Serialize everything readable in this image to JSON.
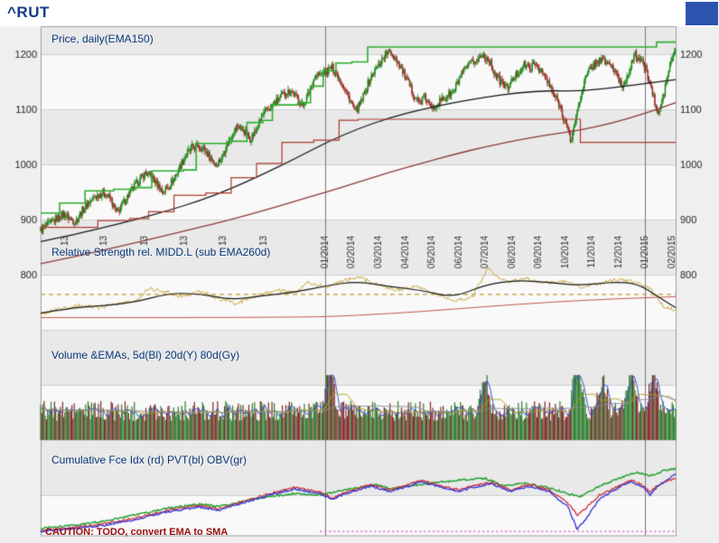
{
  "header": {
    "symbol": "^RUT"
  },
  "panels": {
    "price": {
      "label": "Price, daily(EMA150)"
    },
    "rs": {
      "label": "Relative Strength rel. MIDD.L (sub EMA260d)"
    },
    "volume": {
      "label": "Volume &EMAs, 5d(Bl) 20d(Y) 80d(Gy)"
    },
    "cumulative": {
      "label": "Cumulative Fce Idx (rd) PVT(bl) OBV(gr)"
    },
    "caution": "CAUTION: TODO, convert EMA to SMA"
  },
  "colors": {
    "page": "#efefef",
    "top_strip": "#ffffff",
    "stripe_a": "#e9e9e9",
    "stripe_b": "#f9f9f9",
    "grid": "#cfcfcf",
    "dark_grid": "#787878",
    "border": "#a0a0a0",
    "axis_text": "#222222",
    "date_text": "#333333",
    "panel_label": "#0a3a7e",
    "title": "#123c8c",
    "caution": "#9b1010",
    "corner_box": "#2d54ae",
    "candle_up": "#1a8c1a",
    "candle_down": "#9e2f2f",
    "price_green_step": "#2fae2f",
    "price_red_step": "#ab3b2e",
    "price_black": "#1a1a1a",
    "price_brown": "#8f3a3a",
    "rs_gold": "#c9a63b",
    "rs_dash": "#bf9f2f",
    "rs_red": "#c4574a",
    "vol_up": "#2f7d2f",
    "vol_down": "#7e2a2a",
    "vol_ma5": "#3a50d9",
    "vol_ma20": "#b3a21c",
    "vol_ma80": "#8f8f8f",
    "cum_red": "#d03030",
    "cum_blue": "#3232d8",
    "cum_green": "#1f9e2f",
    "cum_magenta": "#df5fd0"
  },
  "chart_data": {
    "type": "candlestick",
    "title": "^RUT daily price with EMA150, relative strength, volume and cumulative indicator panels",
    "x_axis": {
      "labels": [
        {
          "text": "13",
          "x": 0.038
        },
        {
          "text": "13",
          "x": 0.1
        },
        {
          "text": "13",
          "x": 0.163
        },
        {
          "text": "13",
          "x": 0.226
        },
        {
          "text": "13",
          "x": 0.288
        },
        {
          "text": "13",
          "x": 0.351
        },
        {
          "text": "01/2014",
          "x": 0.448
        },
        {
          "text": "02/2014",
          "x": 0.49
        },
        {
          "text": "03/2014",
          "x": 0.532
        },
        {
          "text": "04/2014",
          "x": 0.574
        },
        {
          "text": "05/2014",
          "x": 0.616
        },
        {
          "text": "06/2014",
          "x": 0.658
        },
        {
          "text": "07/2014",
          "x": 0.7
        },
        {
          "text": "08/2014",
          "x": 0.742
        },
        {
          "text": "09/2014",
          "x": 0.784
        },
        {
          "text": "10/2014",
          "x": 0.826
        },
        {
          "text": "11/2014",
          "x": 0.868
        },
        {
          "text": "12/2014",
          "x": 0.91
        },
        {
          "text": "01/2015",
          "x": 0.952
        },
        {
          "text": "02/2015",
          "x": 0.994
        }
      ],
      "major_gridlines": [
        0.448,
        0.952
      ]
    },
    "y_axis": {
      "ticks": [
        1200,
        1100,
        1000,
        900,
        800
      ],
      "units_per_grid": 100
    },
    "price_panel": {
      "weekly_closes": [
        880,
        888,
        896,
        904,
        910,
        902,
        896,
        914,
        928,
        938,
        946,
        950,
        936,
        912,
        926,
        944,
        958,
        972,
        984,
        978,
        964,
        950,
        962,
        976,
        998,
        1018,
        1030,
        1034,
        1028,
        1014,
        1000,
        1010,
        1038,
        1058,
        1070,
        1060,
        1046,
        1062,
        1088,
        1100,
        1110,
        1120,
        1130,
        1134,
        1120,
        1106,
        1130,
        1158,
        1164,
        1168,
        1176,
        1162,
        1140,
        1120,
        1096,
        1112,
        1142,
        1164,
        1180,
        1198,
        1205,
        1192,
        1172,
        1150,
        1128,
        1112,
        1122,
        1102,
        1110,
        1118,
        1126,
        1134,
        1158,
        1174,
        1184,
        1190,
        1200,
        1188,
        1164,
        1150,
        1140,
        1152,
        1168,
        1180,
        1176,
        1182,
        1168,
        1150,
        1128,
        1110,
        1078,
        1042,
        1090,
        1140,
        1168,
        1182,
        1190,
        1186,
        1180,
        1158,
        1140,
        1172,
        1198,
        1190,
        1170,
        1130,
        1088,
        1130,
        1180,
        1210
      ],
      "lines": {
        "donchian_high_step": {
          "points": [
            [
              0,
              912
            ],
            [
              0.03,
              930
            ],
            [
              0.07,
              952
            ],
            [
              0.115,
              955
            ],
            [
              0.15,
              958
            ],
            [
              0.175,
              988
            ],
            [
              0.225,
              990
            ],
            [
              0.245,
              1038
            ],
            [
              0.3,
              1042
            ],
            [
              0.325,
              1076
            ],
            [
              0.35,
              1080
            ],
            [
              0.365,
              1108
            ],
            [
              0.405,
              1112
            ],
            [
              0.425,
              1142
            ],
            [
              0.445,
              1170
            ],
            [
              0.465,
              1184
            ],
            [
              0.49,
              1186
            ],
            [
              0.515,
              1213
            ],
            [
              0.955,
              1213
            ],
            [
              0.97,
              1222
            ],
            [
              1,
              1222
            ]
          ]
        },
        "donchian_low_step": {
          "points": [
            [
              0,
              886
            ],
            [
              0.06,
              886
            ],
            [
              0.09,
              898
            ],
            [
              0.14,
              902
            ],
            [
              0.17,
              914
            ],
            [
              0.21,
              944
            ],
            [
              0.26,
              948
            ],
            [
              0.3,
              976
            ],
            [
              0.34,
              1002
            ],
            [
              0.38,
              1040
            ],
            [
              0.43,
              1044
            ],
            [
              0.47,
              1080
            ],
            [
              0.5,
              1082
            ],
            [
              0.845,
              1082
            ],
            [
              0.85,
              1040
            ],
            [
              1,
              1040
            ]
          ]
        },
        "ema150": {
          "points": [
            [
              0,
              860
            ],
            [
              0.05,
              872
            ],
            [
              0.1,
              886
            ],
            [
              0.15,
              900
            ],
            [
              0.2,
              916
            ],
            [
              0.25,
              934
            ],
            [
              0.3,
              956
            ],
            [
              0.35,
              982
            ],
            [
              0.4,
              1010
            ],
            [
              0.45,
              1040
            ],
            [
              0.5,
              1065
            ],
            [
              0.55,
              1085
            ],
            [
              0.6,
              1100
            ],
            [
              0.65,
              1112
            ],
            [
              0.7,
              1122
            ],
            [
              0.75,
              1130
            ],
            [
              0.8,
              1134
            ],
            [
              0.84,
              1133
            ],
            [
              0.88,
              1136
            ],
            [
              0.92,
              1142
            ],
            [
              0.96,
              1148
            ],
            [
              1,
              1154
            ]
          ]
        },
        "ema_long": {
          "points": [
            [
              0,
              820
            ],
            [
              0.05,
              832
            ],
            [
              0.1,
              845
            ],
            [
              0.15,
              858
            ],
            [
              0.2,
              872
            ],
            [
              0.25,
              886
            ],
            [
              0.3,
              900
            ],
            [
              0.35,
              916
            ],
            [
              0.4,
              933
            ],
            [
              0.45,
              950
            ],
            [
              0.5,
              968
            ],
            [
              0.55,
              986
            ],
            [
              0.6,
              1002
            ],
            [
              0.65,
              1018
            ],
            [
              0.7,
              1032
            ],
            [
              0.75,
              1044
            ],
            [
              0.8,
              1054
            ],
            [
              0.85,
              1062
            ],
            [
              0.9,
              1075
            ],
            [
              0.95,
              1092
            ],
            [
              1,
              1112
            ]
          ]
        }
      }
    },
    "rs_panel": {
      "gold": [
        [
          0,
          728
        ],
        [
          0.03,
          738
        ],
        [
          0.06,
          744
        ],
        [
          0.09,
          740
        ],
        [
          0.12,
          748
        ],
        [
          0.15,
          752
        ],
        [
          0.17,
          776
        ],
        [
          0.2,
          768
        ],
        [
          0.22,
          760
        ],
        [
          0.25,
          770
        ],
        [
          0.28,
          756
        ],
        [
          0.31,
          748
        ],
        [
          0.34,
          762
        ],
        [
          0.37,
          772
        ],
        [
          0.4,
          766
        ],
        [
          0.42,
          786
        ],
        [
          0.45,
          778
        ],
        [
          0.48,
          790
        ],
        [
          0.5,
          796
        ],
        [
          0.53,
          782
        ],
        [
          0.56,
          772
        ],
        [
          0.59,
          778
        ],
        [
          0.62,
          766
        ],
        [
          0.65,
          752
        ],
        [
          0.68,
          760
        ],
        [
          0.705,
          812
        ],
        [
          0.72,
          796
        ],
        [
          0.74,
          786
        ],
        [
          0.76,
          794
        ],
        [
          0.79,
          784
        ],
        [
          0.82,
          788
        ],
        [
          0.85,
          778
        ],
        [
          0.88,
          784
        ],
        [
          0.91,
          792
        ],
        [
          0.94,
          786
        ],
        [
          0.96,
          776
        ],
        [
          0.98,
          744
        ],
        [
          1,
          734
        ]
      ],
      "smooth_black": [
        [
          0,
          730
        ],
        [
          0.05,
          740
        ],
        [
          0.1,
          744
        ],
        [
          0.15,
          750
        ],
        [
          0.2,
          766
        ],
        [
          0.25,
          766
        ],
        [
          0.3,
          754
        ],
        [
          0.35,
          762
        ],
        [
          0.4,
          768
        ],
        [
          0.45,
          780
        ],
        [
          0.5,
          788
        ],
        [
          0.55,
          778
        ],
        [
          0.6,
          772
        ],
        [
          0.65,
          758
        ],
        [
          0.7,
          782
        ],
        [
          0.75,
          790
        ],
        [
          0.8,
          786
        ],
        [
          0.85,
          780
        ],
        [
          0.9,
          787
        ],
        [
          0.94,
          784
        ],
        [
          0.97,
          762
        ],
        [
          1,
          740
        ]
      ],
      "flat_red": [
        [
          0,
          722
        ],
        [
          0.4,
          722
        ],
        [
          0.5,
          726
        ],
        [
          0.6,
          733
        ],
        [
          0.7,
          742
        ],
        [
          0.8,
          750
        ],
        [
          0.9,
          756
        ],
        [
          1,
          760
        ]
      ],
      "dashed_level": 764
    },
    "volume_panel": {
      "base": 0.55,
      "noise": 0.25,
      "spikes": [
        [
          0.455,
          1.25
        ],
        [
          0.7,
          0.9
        ],
        [
          0.845,
          1.35
        ],
        [
          0.885,
          0.8
        ],
        [
          0.93,
          1.1
        ],
        [
          0.965,
          1.0
        ]
      ],
      "sma_periods": [
        5,
        20,
        80
      ]
    },
    "cumulative_panel": {
      "obv_green": [
        [
          0,
          0.06
        ],
        [
          0.05,
          0.1
        ],
        [
          0.1,
          0.16
        ],
        [
          0.15,
          0.24
        ],
        [
          0.2,
          0.33
        ],
        [
          0.25,
          0.38
        ],
        [
          0.28,
          0.35
        ],
        [
          0.32,
          0.42
        ],
        [
          0.36,
          0.48
        ],
        [
          0.4,
          0.52
        ],
        [
          0.44,
          0.5
        ],
        [
          0.47,
          0.55
        ],
        [
          0.5,
          0.6
        ],
        [
          0.53,
          0.64
        ],
        [
          0.55,
          0.58
        ],
        [
          0.58,
          0.62
        ],
        [
          0.62,
          0.66
        ],
        [
          0.66,
          0.7
        ],
        [
          0.7,
          0.72
        ],
        [
          0.73,
          0.62
        ],
        [
          0.76,
          0.66
        ],
        [
          0.8,
          0.6
        ],
        [
          0.83,
          0.52
        ],
        [
          0.85,
          0.48
        ],
        [
          0.88,
          0.62
        ],
        [
          0.91,
          0.72
        ],
        [
          0.94,
          0.8
        ],
        [
          0.96,
          0.75
        ],
        [
          0.98,
          0.82
        ],
        [
          1,
          0.85
        ]
      ],
      "pvt_blue": [
        [
          0,
          0.02
        ],
        [
          0.05,
          0.06
        ],
        [
          0.1,
          0.1
        ],
        [
          0.15,
          0.18
        ],
        [
          0.2,
          0.28
        ],
        [
          0.25,
          0.34
        ],
        [
          0.28,
          0.3
        ],
        [
          0.32,
          0.4
        ],
        [
          0.36,
          0.5
        ],
        [
          0.4,
          0.58
        ],
        [
          0.44,
          0.52
        ],
        [
          0.46,
          0.44
        ],
        [
          0.48,
          0.52
        ],
        [
          0.52,
          0.62
        ],
        [
          0.55,
          0.55
        ],
        [
          0.58,
          0.62
        ],
        [
          0.6,
          0.68
        ],
        [
          0.63,
          0.6
        ],
        [
          0.66,
          0.55
        ],
        [
          0.68,
          0.6
        ],
        [
          0.71,
          0.65
        ],
        [
          0.74,
          0.55
        ],
        [
          0.77,
          0.62
        ],
        [
          0.8,
          0.55
        ],
        [
          0.83,
          0.35
        ],
        [
          0.845,
          0.05
        ],
        [
          0.86,
          0.2
        ],
        [
          0.88,
          0.45
        ],
        [
          0.91,
          0.6
        ],
        [
          0.93,
          0.68
        ],
        [
          0.95,
          0.6
        ],
        [
          0.96,
          0.5
        ],
        [
          0.97,
          0.6
        ],
        [
          0.985,
          0.7
        ],
        [
          1,
          0.78
        ]
      ],
      "force_red": [
        [
          0,
          0.03
        ],
        [
          0.05,
          0.07
        ],
        [
          0.1,
          0.12
        ],
        [
          0.15,
          0.2
        ],
        [
          0.2,
          0.3
        ],
        [
          0.25,
          0.36
        ],
        [
          0.28,
          0.32
        ],
        [
          0.32,
          0.42
        ],
        [
          0.36,
          0.52
        ],
        [
          0.4,
          0.6
        ],
        [
          0.44,
          0.54
        ],
        [
          0.46,
          0.46
        ],
        [
          0.48,
          0.54
        ],
        [
          0.52,
          0.64
        ],
        [
          0.55,
          0.57
        ],
        [
          0.58,
          0.64
        ],
        [
          0.6,
          0.7
        ],
        [
          0.63,
          0.62
        ],
        [
          0.66,
          0.57
        ],
        [
          0.68,
          0.62
        ],
        [
          0.71,
          0.67
        ],
        [
          0.74,
          0.57
        ],
        [
          0.77,
          0.64
        ],
        [
          0.8,
          0.57
        ],
        [
          0.83,
          0.4
        ],
        [
          0.845,
          0.24
        ],
        [
          0.86,
          0.34
        ],
        [
          0.88,
          0.5
        ],
        [
          0.91,
          0.62
        ],
        [
          0.93,
          0.7
        ],
        [
          0.95,
          0.62
        ],
        [
          0.96,
          0.54
        ],
        [
          0.97,
          0.62
        ],
        [
          0.985,
          0.68
        ],
        [
          1,
          0.72
        ]
      ],
      "dotted_magenta": {
        "start_x": 0.44,
        "level": 0.02
      }
    }
  }
}
